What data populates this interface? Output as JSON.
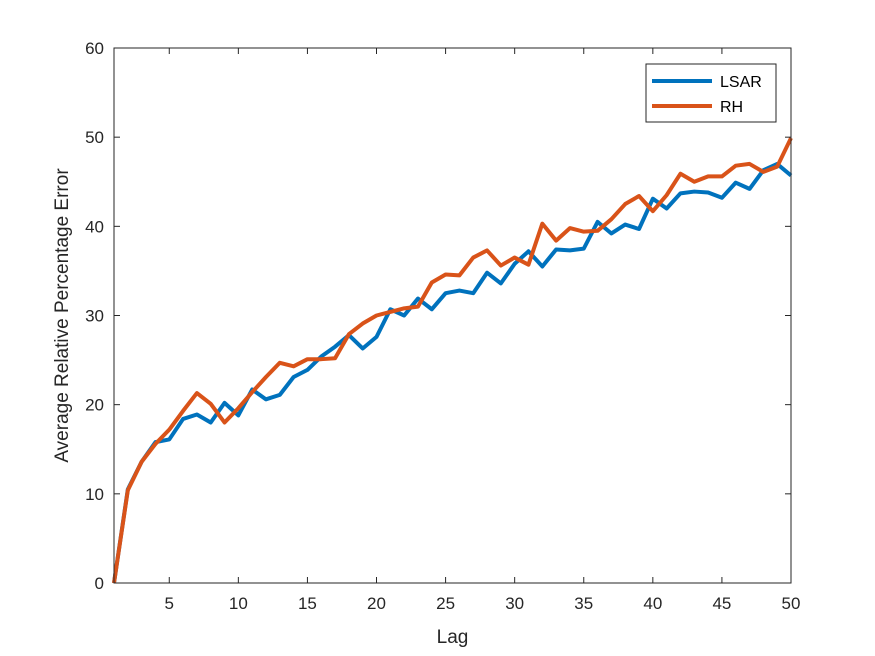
{
  "chart_data": {
    "type": "line",
    "title": "",
    "xlabel": "Lag",
    "ylabel": "Average Relative Percentage Error",
    "xlim": [
      1,
      50
    ],
    "ylim": [
      0,
      60
    ],
    "xticks": [
      5,
      10,
      15,
      20,
      25,
      30,
      35,
      40,
      45,
      50
    ],
    "yticks": [
      0,
      10,
      20,
      30,
      40,
      50,
      60
    ],
    "grid": false,
    "legend_position": "top-right",
    "x": [
      1,
      2,
      3,
      4,
      5,
      6,
      7,
      8,
      9,
      10,
      11,
      12,
      13,
      14,
      15,
      16,
      17,
      18,
      19,
      20,
      21,
      22,
      23,
      24,
      25,
      26,
      27,
      28,
      29,
      30,
      31,
      32,
      33,
      34,
      35,
      36,
      37,
      38,
      39,
      40,
      41,
      42,
      43,
      44,
      45,
      46,
      47,
      48,
      49,
      50
    ],
    "series": [
      {
        "name": "LSAR",
        "color": "#0072BD",
        "values": [
          0,
          10.5,
          13.6,
          15.8,
          16.1,
          18.4,
          18.9,
          18.0,
          20.2,
          18.8,
          21.7,
          20.6,
          21.1,
          23.1,
          23.9,
          25.4,
          26.5,
          27.8,
          26.3,
          27.6,
          30.7,
          30.0,
          31.9,
          30.7,
          32.5,
          32.8,
          32.5,
          34.8,
          33.6,
          35.8,
          37.2,
          35.5,
          37.4,
          37.3,
          37.5,
          40.5,
          39.2,
          40.2,
          39.7,
          43.1,
          42.0,
          43.7,
          43.9,
          43.8,
          43.2,
          44.9,
          44.2,
          46.3,
          47.0,
          45.7
        ]
      },
      {
        "name": "RH",
        "color": "#D95319",
        "values": [
          0,
          10.4,
          13.6,
          15.6,
          17.2,
          19.3,
          21.3,
          20.1,
          18.0,
          19.6,
          21.4,
          23.1,
          24.7,
          24.3,
          25.1,
          25.1,
          25.2,
          27.9,
          29.1,
          30.0,
          30.4,
          30.8,
          31.0,
          33.7,
          34.6,
          34.5,
          36.5,
          37.3,
          35.6,
          36.5,
          35.7,
          40.3,
          38.4,
          39.8,
          39.4,
          39.5,
          40.8,
          42.5,
          43.4,
          41.7,
          43.5,
          45.9,
          45.0,
          45.6,
          45.6,
          46.8,
          47.0,
          46.1,
          46.7,
          49.9
        ]
      }
    ]
  }
}
